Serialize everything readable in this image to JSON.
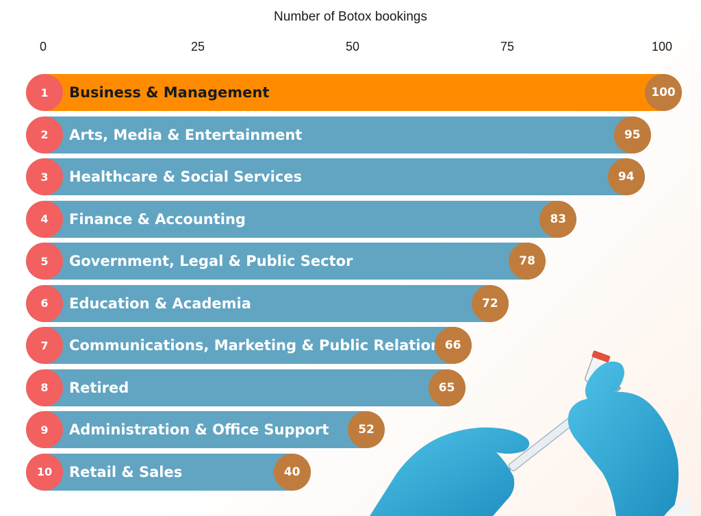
{
  "chart_data": {
    "type": "bar",
    "orientation": "horizontal",
    "xlabel": "Number of Botox bookings",
    "xlim": [
      0,
      100
    ],
    "ticks": [
      "0",
      "25",
      "50",
      "75",
      "100"
    ],
    "categories": [
      "Business & Management",
      "Arts, Media & Entertainment",
      "Healthcare & Social Services",
      "Finance & Accounting",
      "Government, Legal & Public Sector",
      "Education & Academia",
      "Communications, Marketing & Public Relations",
      "Retired",
      "Administration & Office Support",
      "Retail & Sales"
    ],
    "ranks": [
      "1",
      "2",
      "3",
      "4",
      "5",
      "6",
      "7",
      "8",
      "9",
      "10"
    ],
    "values": [
      100,
      95,
      94,
      83,
      78,
      72,
      66,
      65,
      52,
      40
    ],
    "colors": {
      "highlight": "#ff8c00",
      "bar": "#61a5c2",
      "rank_badge": "#f2605f",
      "value_badge": "#c07c3c"
    },
    "decoration": "gloved-hands-syringe-illustration"
  }
}
